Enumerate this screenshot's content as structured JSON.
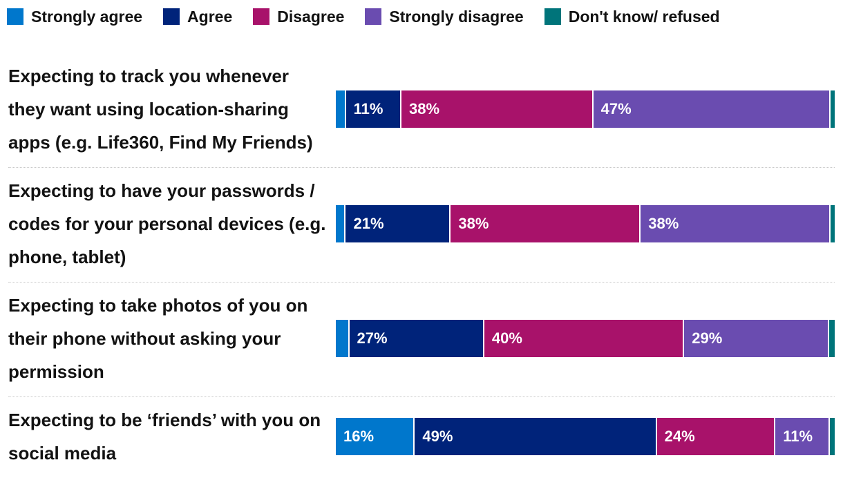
{
  "chart_data": {
    "type": "bar",
    "orientation": "horizontal",
    "stacked": true,
    "title": "",
    "xlabel": "",
    "ylabel": "",
    "xlim": [
      0,
      100
    ],
    "grid": false,
    "legend_placement": "top-left",
    "categories": [
      "Expecting to track you whenever they want using location-sharing apps (e.g. Life360, Find My Friends)",
      "Expecting to have your passwords / codes for your personal devices (e.g. phone, tablet)",
      "Expecting to take photos of you on their phone without asking your permission",
      "Expecting to be ‘friends’ with you on social media"
    ],
    "series": [
      {
        "name": "Strongly agree",
        "color": "#0077cc",
        "values": [
          2,
          2,
          2.7,
          16
        ]
      },
      {
        "name": "Agree",
        "color": "#00237a",
        "values": [
          11,
          21,
          27,
          49
        ]
      },
      {
        "name": "Disagree",
        "color": "#a8126a",
        "values": [
          38,
          38,
          40,
          24
        ]
      },
      {
        "name": "Strongly disagree",
        "color": "#6a4cb0",
        "values": [
          47,
          38,
          29,
          11
        ]
      },
      {
        "name": "Don't know/ refused",
        "color": "#00747a",
        "values": [
          0.8,
          0.8,
          1.1,
          1
        ]
      }
    ],
    "data_labels": [
      [
        "",
        "11%",
        "38%",
        "47%",
        ""
      ],
      [
        "",
        "21%",
        "38%",
        "38%",
        ""
      ],
      [
        "",
        "27%",
        "40%",
        "29%",
        ""
      ],
      [
        "16%",
        "49%",
        "24%",
        "11%",
        ""
      ]
    ]
  }
}
